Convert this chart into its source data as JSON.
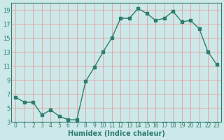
{
  "x": [
    0,
    1,
    2,
    3,
    4,
    5,
    6,
    7,
    8,
    9,
    10,
    11,
    12,
    13,
    14,
    15,
    16,
    17,
    18,
    19,
    20,
    21,
    22,
    23
  ],
  "y": [
    6.5,
    5.8,
    5.8,
    4.0,
    4.7,
    3.8,
    3.3,
    3.3,
    8.8,
    10.8,
    13.0,
    15.0,
    17.8,
    17.8,
    19.2,
    18.5,
    17.5,
    17.8,
    18.8,
    17.3,
    17.5,
    16.3,
    13.0,
    11.2
  ],
  "line_color": "#2e7d6e",
  "bg_color": "#cce8e8",
  "grid_color": "#e8a0a0",
  "xlabel": "Humidex (Indice chaleur)",
  "ylim": [
    3,
    20
  ],
  "xlim": [
    -0.5,
    23.5
  ],
  "yticks": [
    3,
    5,
    7,
    9,
    11,
    13,
    15,
    17,
    19
  ],
  "xticks": [
    0,
    1,
    2,
    3,
    4,
    5,
    6,
    7,
    8,
    9,
    10,
    11,
    12,
    13,
    14,
    15,
    16,
    17,
    18,
    19,
    20,
    21,
    22,
    23
  ],
  "marker": "s",
  "markersize": 2.5,
  "linewidth": 1.0
}
